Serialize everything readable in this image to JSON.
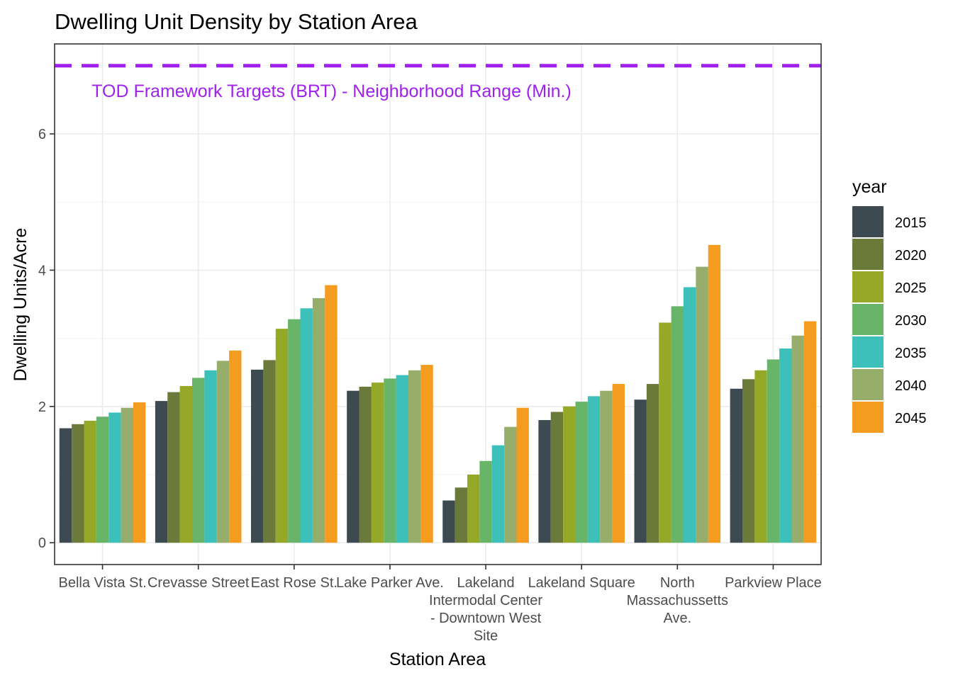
{
  "chart_data": {
    "type": "bar",
    "title": "Dwelling Unit Density by Station Area",
    "xlabel": "Station Area",
    "ylabel": "Dwelling Units/Acre",
    "ylim": [
      -0.32,
      7.32
    ],
    "yticks": [
      0,
      2,
      4,
      6
    ],
    "grid": true,
    "legend_position": "right",
    "legend_title": "year",
    "categories": [
      [
        "Bella Vista St."
      ],
      [
        "Crevasse Street"
      ],
      [
        "East Rose St."
      ],
      [
        "Lake Parker Ave."
      ],
      [
        "Lakeland",
        "Intermodal Center",
        "- Downtown West",
        "Site"
      ],
      [
        "Lakeland Square"
      ],
      [
        "North",
        "Massachussetts",
        "Ave."
      ],
      [
        "Parkview Place"
      ]
    ],
    "series": [
      {
        "name": "2015",
        "color": "#3d4a52",
        "values": [
          1.68,
          2.08,
          2.54,
          2.23,
          0.62,
          1.8,
          2.1,
          2.26
        ]
      },
      {
        "name": "2020",
        "color": "#6b7a3a",
        "values": [
          1.74,
          2.21,
          2.68,
          2.29,
          0.81,
          1.92,
          2.33,
          2.4
        ]
      },
      {
        "name": "2025",
        "color": "#96a827",
        "values": [
          1.79,
          2.3,
          3.14,
          2.35,
          1.0,
          2.0,
          3.23,
          2.53
        ]
      },
      {
        "name": "2030",
        "color": "#68b56a",
        "values": [
          1.85,
          2.42,
          3.28,
          2.41,
          1.2,
          2.07,
          3.47,
          2.69
        ]
      },
      {
        "name": "2035",
        "color": "#3dbfba",
        "values": [
          1.91,
          2.53,
          3.44,
          2.46,
          1.43,
          2.15,
          3.75,
          2.85
        ]
      },
      {
        "name": "2040",
        "color": "#97ad6c",
        "values": [
          1.98,
          2.67,
          3.59,
          2.53,
          1.7,
          2.23,
          4.05,
          3.04
        ]
      },
      {
        "name": "2045",
        "color": "#f39c1f",
        "values": [
          2.06,
          2.82,
          3.78,
          2.61,
          1.98,
          2.33,
          4.37,
          3.25
        ]
      }
    ],
    "reference_line": {
      "value": 7.0,
      "label": "TOD Framework Targets (BRT) - Neighborhood Range (Min.)",
      "color": "#a020f0"
    }
  }
}
